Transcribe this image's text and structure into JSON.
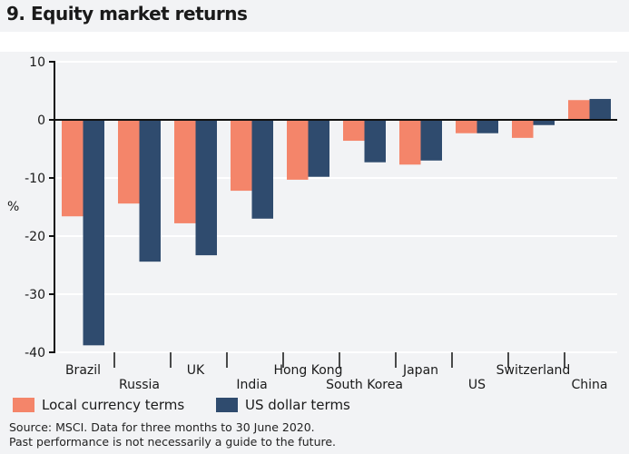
{
  "title": "9. Equity market returns",
  "colors": {
    "local": "#f4856a",
    "usd": "#2f4b6e"
  },
  "chart_data": {
    "type": "bar",
    "title": "9. Equity market returns",
    "ylabel": "%",
    "ylim": [
      -40,
      10
    ],
    "yticks": [
      10,
      0,
      -10,
      -20,
      -30,
      -40
    ],
    "grid": true,
    "legend": "bottom",
    "categories": [
      "Brazil",
      "Russia",
      "UK",
      "India",
      "Hong Kong",
      "South Korea",
      "Japan",
      "US",
      "Switzerland",
      "China"
    ],
    "series": [
      {
        "name": "Local currency terms",
        "values": [
          -16.6,
          -14.4,
          -17.8,
          -12.2,
          -10.3,
          -3.6,
          -7.7,
          -2.3,
          -3.1,
          3.4
        ]
      },
      {
        "name": "US dollar terms",
        "values": [
          -38.8,
          -24.4,
          -23.3,
          -17.0,
          -9.8,
          -7.3,
          -7.0,
          -2.3,
          -0.9,
          3.6
        ]
      }
    ]
  },
  "source": "Source: MSCI. Data for three months to 30 June 2020.",
  "disclaimer": "Past performance is not necessarily a guide to the future."
}
